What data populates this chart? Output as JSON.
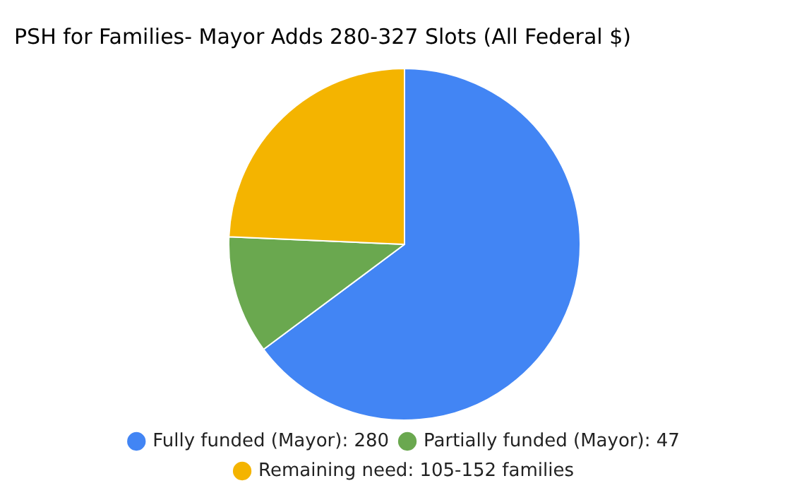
{
  "chart_data": {
    "type": "pie",
    "title": "PSH for Families- Mayor Adds 280-327 Slots (All Federal $)",
    "categories": [
      "Fully funded (Mayor): 280",
      "Partially funded (Mayor): 47",
      "Remaining need: 105-152 families"
    ],
    "values": [
      280,
      47,
      105
    ],
    "colors": [
      "#4285f4",
      "#6aa84f",
      "#f4b400"
    ],
    "legend": "bottom"
  }
}
